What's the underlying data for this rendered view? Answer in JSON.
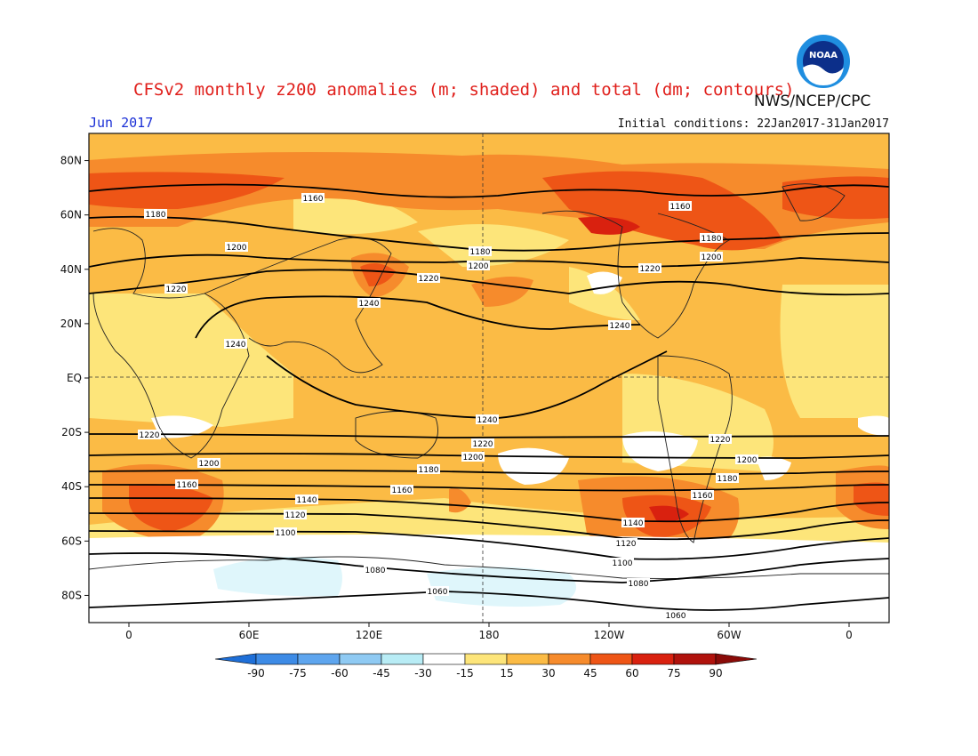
{
  "header": {
    "title": "CFSv2 monthly z200 anomalies (m; shaded) and total (dm; contours)",
    "period": "Jun 2017",
    "initial_conditions": "Initial conditions: 22Jan2017-31Jan2017",
    "agency": "NWS/NCEP/CPC",
    "logo_text": "NOAA"
  },
  "axes": {
    "lat_labels": [
      "80N",
      "60N",
      "40N",
      "20N",
      "EQ",
      "20S",
      "40S",
      "60S",
      "80S"
    ],
    "lat_values": [
      80,
      60,
      40,
      20,
      0,
      -20,
      -40,
      -60,
      -80
    ],
    "lon_labels": [
      "0",
      "60E",
      "120E",
      "180",
      "120W",
      "60W",
      "0"
    ],
    "lon_values": [
      0,
      60,
      120,
      180,
      240,
      300,
      360
    ]
  },
  "colorbar": {
    "ticks": [
      "-90",
      "-75",
      "-60",
      "-45",
      "-30",
      "-15",
      "15",
      "30",
      "45",
      "60",
      "75",
      "90"
    ],
    "colors": [
      "#1e6fd8",
      "#3d8be6",
      "#5ea5ee",
      "#8fcaf3",
      "#b8ecf5",
      "#ffffff",
      "#fde57a",
      "#fbbb45",
      "#f68b2c",
      "#ee5516",
      "#d9210f",
      "#b0120c",
      "#8a0b08"
    ]
  },
  "chart_data": {
    "type": "heatmap",
    "field": "z200 anomaly (m; shaded)",
    "contour_field": "z200 total (dm; contours)",
    "anomaly_bins": [
      -90,
      -75,
      -60,
      -45,
      -30,
      -15,
      15,
      30,
      45,
      60,
      75,
      90
    ],
    "contours": [
      {
        "level": 1240,
        "label": "1240"
      },
      {
        "level": 1220,
        "label": "1220"
      },
      {
        "level": 1200,
        "label": "1200"
      },
      {
        "level": 1180,
        "label": "1180"
      },
      {
        "level": 1160,
        "label": "1160"
      },
      {
        "level": 1140,
        "label": "1140"
      },
      {
        "level": 1120,
        "label": "1120"
      },
      {
        "level": 1100,
        "label": "1100"
      },
      {
        "level": 1080,
        "label": "1080"
      },
      {
        "level": 1060,
        "label": "1060"
      }
    ]
  }
}
